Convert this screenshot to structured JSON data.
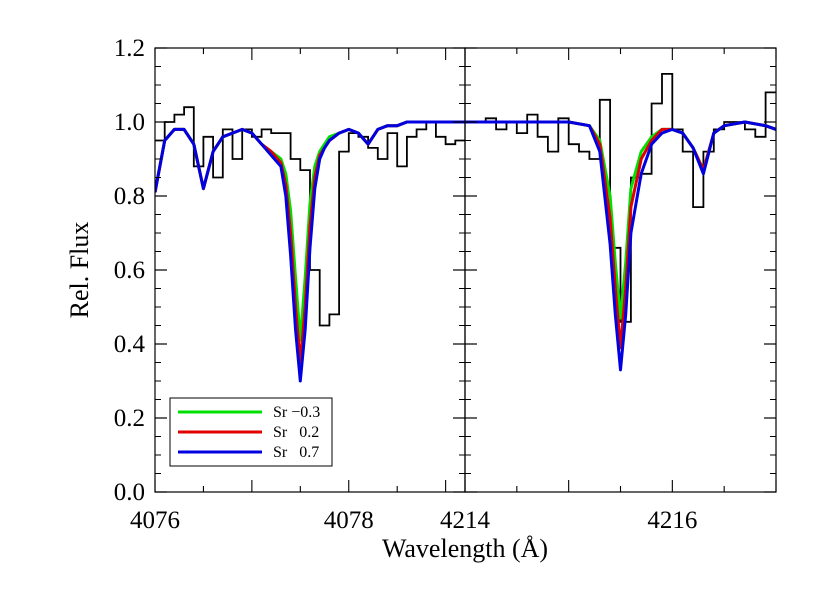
{
  "chart_data": [
    {
      "type": "line",
      "panel": "left",
      "xlim": [
        4076.0,
        4079.2
      ],
      "ylim": [
        0.0,
        1.2
      ],
      "x_ticks": [
        4076,
        4078
      ],
      "x_tick_labels": [
        "4076",
        "4078"
      ],
      "y_ticks": [
        0.0,
        0.2,
        0.4,
        0.6,
        0.8,
        1.0,
        1.2
      ],
      "y_tick_labels": [
        "0.0",
        "0.2",
        "0.4",
        "0.6",
        "0.8",
        "1.0",
        "1.2"
      ],
      "ylabel": "Rel. Flux",
      "observed": {
        "style": "step",
        "color": "#000000",
        "x": [
          4076.0,
          4076.1,
          4076.2,
          4076.3,
          4076.4,
          4076.5,
          4076.6,
          4076.7,
          4076.8,
          4076.9,
          4077.0,
          4077.1,
          4077.2,
          4077.3,
          4077.4,
          4077.5,
          4077.6,
          4077.7,
          4077.8,
          4077.9,
          4078.0,
          4078.1,
          4078.2,
          4078.3,
          4078.4,
          4078.5,
          4078.6,
          4078.7,
          4078.8,
          4078.9,
          4079.0,
          4079.1
        ],
        "y": [
          0.95,
          1.0,
          1.02,
          1.04,
          0.88,
          0.96,
          0.85,
          0.98,
          0.9,
          0.98,
          0.96,
          0.98,
          0.97,
          0.97,
          0.9,
          0.87,
          0.6,
          0.45,
          0.48,
          0.92,
          0.97,
          0.96,
          0.93,
          0.9,
          0.97,
          0.88,
          0.96,
          0.98,
          1.0,
          0.96,
          0.94,
          0.95
        ]
      },
      "series": [
        {
          "name": "Sr −0.3",
          "color": "#00e000",
          "x": [
            4076.0,
            4076.1,
            4076.2,
            4076.3,
            4076.4,
            4076.5,
            4076.6,
            4076.7,
            4076.8,
            4076.9,
            4077.0,
            4077.1,
            4077.2,
            4077.3,
            4077.35,
            4077.4,
            4077.45,
            4077.5,
            4077.55,
            4077.6,
            4077.65,
            4077.7,
            4077.75,
            4077.8,
            4077.9,
            4078.0,
            4078.1,
            4078.2,
            4078.3,
            4078.4,
            4078.5,
            4078.6,
            4078.7,
            4078.8,
            4079.0,
            4079.2
          ],
          "y": [
            0.81,
            0.95,
            0.98,
            0.98,
            0.94,
            0.82,
            0.92,
            0.96,
            0.97,
            0.98,
            0.97,
            0.94,
            0.92,
            0.9,
            0.86,
            0.76,
            0.58,
            0.41,
            0.58,
            0.78,
            0.88,
            0.92,
            0.94,
            0.96,
            0.97,
            0.98,
            0.97,
            0.94,
            0.98,
            0.99,
            0.99,
            1.0,
            1.0,
            1.0,
            1.0,
            1.0
          ]
        },
        {
          "name": "Sr   0.2",
          "color": "#e00000",
          "x": [
            4076.0,
            4076.1,
            4076.2,
            4076.3,
            4076.4,
            4076.5,
            4076.6,
            4076.7,
            4076.8,
            4076.9,
            4077.0,
            4077.1,
            4077.2,
            4077.3,
            4077.35,
            4077.4,
            4077.45,
            4077.5,
            4077.55,
            4077.6,
            4077.65,
            4077.7,
            4077.75,
            4077.8,
            4077.9,
            4078.0,
            4078.1,
            4078.2,
            4078.3,
            4078.4,
            4078.5,
            4078.6,
            4078.7,
            4078.8,
            4079.0,
            4079.2
          ],
          "y": [
            0.81,
            0.95,
            0.98,
            0.98,
            0.94,
            0.82,
            0.92,
            0.96,
            0.97,
            0.98,
            0.97,
            0.94,
            0.92,
            0.89,
            0.83,
            0.7,
            0.5,
            0.35,
            0.5,
            0.72,
            0.85,
            0.91,
            0.93,
            0.95,
            0.97,
            0.98,
            0.97,
            0.94,
            0.98,
            0.99,
            0.99,
            1.0,
            1.0,
            1.0,
            1.0,
            1.0
          ]
        },
        {
          "name": "Sr   0.7",
          "color": "#0000e0",
          "x": [
            4076.0,
            4076.1,
            4076.2,
            4076.3,
            4076.4,
            4076.5,
            4076.6,
            4076.7,
            4076.8,
            4076.9,
            4077.0,
            4077.1,
            4077.2,
            4077.3,
            4077.35,
            4077.4,
            4077.45,
            4077.5,
            4077.55,
            4077.6,
            4077.65,
            4077.7,
            4077.75,
            4077.8,
            4077.9,
            4078.0,
            4078.1,
            4078.2,
            4078.3,
            4078.4,
            4078.5,
            4078.6,
            4078.7,
            4078.8,
            4079.0,
            4079.2
          ],
          "y": [
            0.81,
            0.95,
            0.98,
            0.98,
            0.94,
            0.82,
            0.92,
            0.96,
            0.97,
            0.98,
            0.97,
            0.94,
            0.91,
            0.88,
            0.8,
            0.64,
            0.44,
            0.3,
            0.44,
            0.66,
            0.82,
            0.9,
            0.93,
            0.95,
            0.97,
            0.98,
            0.97,
            0.94,
            0.98,
            0.99,
            0.99,
            1.0,
            1.0,
            1.0,
            1.0,
            1.0
          ]
        }
      ]
    },
    {
      "type": "line",
      "panel": "right",
      "xlim": [
        4214.0,
        4217.0
      ],
      "ylim": [
        0.0,
        1.2
      ],
      "x_ticks": [
        4214,
        4216
      ],
      "x_tick_labels": [
        "4214",
        "4216"
      ],
      "y_ticks": [
        0.0,
        0.2,
        0.4,
        0.6,
        0.8,
        1.0,
        1.2
      ],
      "xlabel": "Wavelength (Å)",
      "observed": {
        "style": "step",
        "color": "#000000",
        "x": [
          4214.0,
          4214.1,
          4214.2,
          4214.3,
          4214.4,
          4214.5,
          4214.6,
          4214.7,
          4214.8,
          4214.9,
          4215.0,
          4215.1,
          4215.2,
          4215.3,
          4215.4,
          4215.5,
          4215.6,
          4215.7,
          4215.8,
          4215.9,
          4216.0,
          4216.1,
          4216.2,
          4216.3,
          4216.4,
          4216.5,
          4216.6,
          4216.7,
          4216.8,
          4216.9
        ],
        "y": [
          1.0,
          1.0,
          1.01,
          0.98,
          1.0,
          0.97,
          1.02,
          0.96,
          0.92,
          1.01,
          0.94,
          0.92,
          0.9,
          1.06,
          0.66,
          0.46,
          0.85,
          0.86,
          1.05,
          1.13,
          0.98,
          0.92,
          0.77,
          0.92,
          0.98,
          1.0,
          1.0,
          0.98,
          0.96,
          1.08
        ]
      },
      "series": [
        {
          "name": "Sr −0.3",
          "color": "#00e000",
          "x": [
            4214.0,
            4214.5,
            4215.0,
            4215.2,
            4215.3,
            4215.4,
            4215.45,
            4215.5,
            4215.55,
            4215.6,
            4215.7,
            4215.8,
            4215.9,
            4216.0,
            4216.1,
            4216.2,
            4216.3,
            4216.4,
            4216.5,
            4216.7,
            4216.9,
            4217.0
          ],
          "y": [
            1.0,
            1.0,
            1.0,
            0.99,
            0.95,
            0.8,
            0.62,
            0.47,
            0.62,
            0.82,
            0.92,
            0.96,
            0.98,
            0.98,
            0.97,
            0.93,
            0.87,
            0.97,
            0.99,
            1.0,
            0.99,
            0.98
          ]
        },
        {
          "name": "Sr   0.2",
          "color": "#e00000",
          "x": [
            4214.0,
            4214.5,
            4215.0,
            4215.2,
            4215.3,
            4215.4,
            4215.45,
            4215.5,
            4215.55,
            4215.6,
            4215.7,
            4215.8,
            4215.9,
            4216.0,
            4216.1,
            4216.2,
            4216.3,
            4216.4,
            4216.5,
            4216.7,
            4216.9,
            4217.0
          ],
          "y": [
            1.0,
            1.0,
            1.0,
            0.99,
            0.94,
            0.74,
            0.55,
            0.39,
            0.55,
            0.77,
            0.9,
            0.95,
            0.98,
            0.98,
            0.97,
            0.93,
            0.87,
            0.97,
            0.99,
            1.0,
            0.99,
            0.98
          ]
        },
        {
          "name": "Sr   0.7",
          "color": "#0000e0",
          "x": [
            4214.0,
            4214.5,
            4215.0,
            4215.2,
            4215.3,
            4215.4,
            4215.45,
            4215.5,
            4215.55,
            4215.6,
            4215.7,
            4215.8,
            4215.9,
            4216.0,
            4216.1,
            4216.2,
            4216.3,
            4216.4,
            4216.5,
            4216.7,
            4216.9,
            4217.0
          ],
          "y": [
            1.0,
            1.0,
            1.0,
            0.99,
            0.92,
            0.67,
            0.48,
            0.33,
            0.48,
            0.7,
            0.86,
            0.94,
            0.97,
            0.98,
            0.97,
            0.93,
            0.86,
            0.97,
            0.99,
            1.0,
            0.99,
            0.98
          ]
        }
      ]
    }
  ],
  "legend": {
    "placement": "lower-left",
    "entries": [
      {
        "label": "Sr −0.3",
        "color": "#00e000"
      },
      {
        "label": "Sr   0.2",
        "color": "#e00000"
      },
      {
        "label": "Sr   0.7",
        "color": "#0000e0"
      }
    ]
  }
}
